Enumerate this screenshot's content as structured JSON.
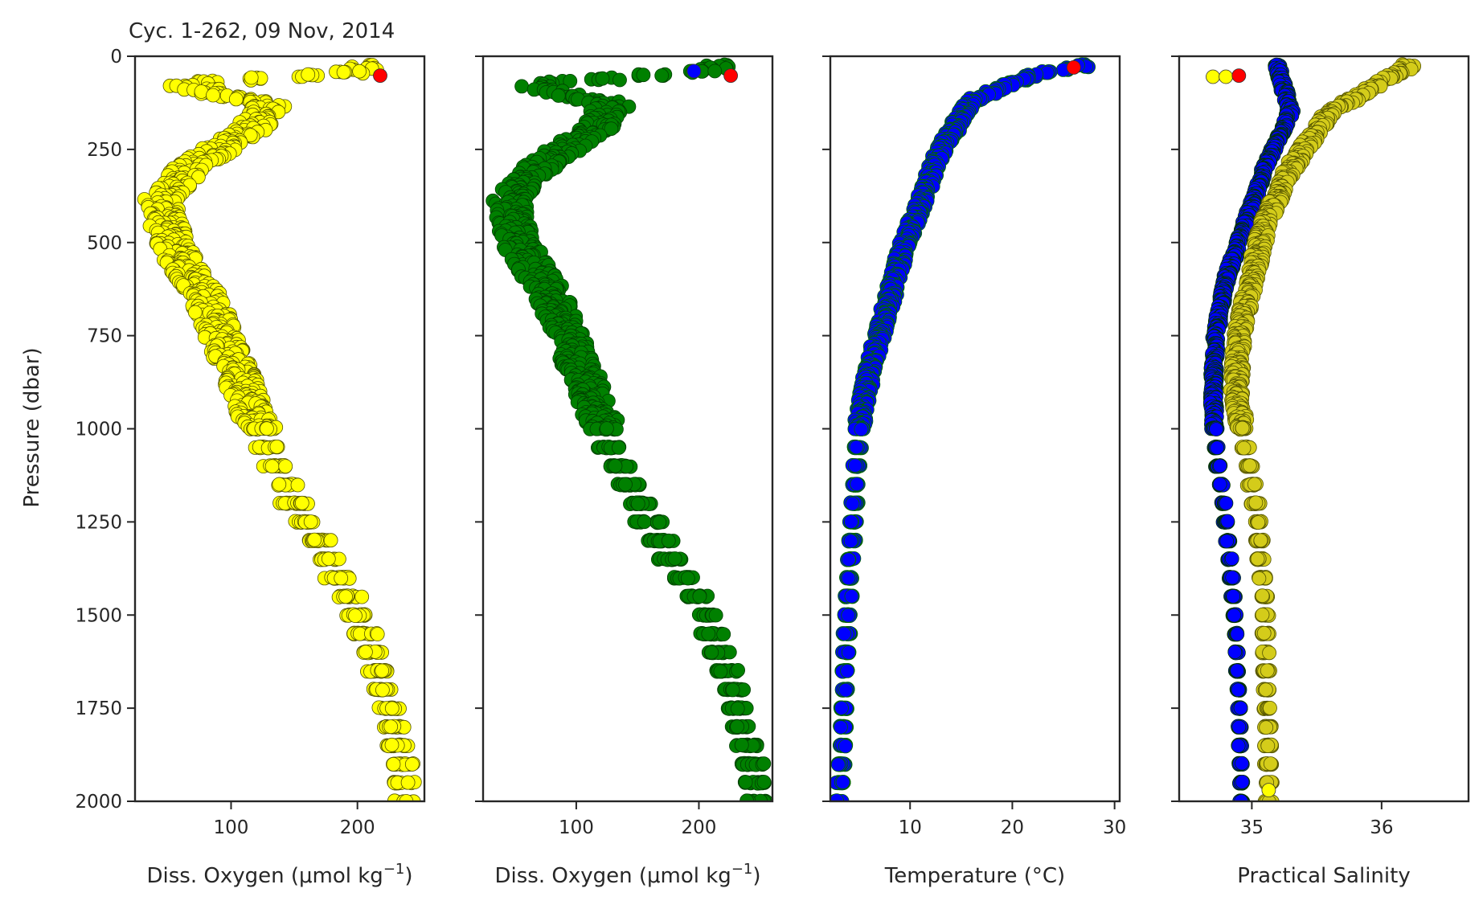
{
  "title": "Cyc. 1-262, 09 Nov, 2014",
  "y_axis": {
    "label": "Pressure (dbar)",
    "ticks": [
      0,
      250,
      500,
      750,
      1000,
      1250,
      1500,
      1750,
      2000
    ],
    "range": [
      2000,
      0
    ],
    "inverted": true
  },
  "chart_data": [
    {
      "type": "scatter",
      "xlabel": "Diss. Oxygen (μmol kg",
      "xlabel_sup": "−1",
      "xlabel_tail": ")",
      "xlim": [
        24,
        253
      ],
      "xticks": [
        100,
        200
      ],
      "ylim": [
        2000,
        0
      ],
      "grid": false,
      "series": [
        {
          "color": "#ffff00",
          "edge": "#555500",
          "profile_x": [
            205,
            60,
            130,
            115,
            75,
            45,
            52,
            80,
            105,
            128,
            150,
            178,
            200,
            222,
            236,
            238
          ],
          "profile_y": [
            40,
            75,
            130,
            200,
            280,
            380,
            500,
            650,
            850,
            1050,
            1200,
            1350,
            1500,
            1700,
            1900,
            2000
          ],
          "spread": 28
        }
      ],
      "highlights": [
        {
          "x": 218,
          "y": 52,
          "color": "#ff0000"
        }
      ]
    },
    {
      "type": "scatter",
      "xlabel": "Diss. Oxygen (μmol kg",
      "xlabel_sup": "−1",
      "xlabel_tail": ")",
      "xlim": [
        24,
        260
      ],
      "xticks": [
        100,
        200
      ],
      "ylim": [
        2000,
        0
      ],
      "grid": false,
      "series": [
        {
          "color": "#008000",
          "edge": "#004000",
          "profile_x": [
            215,
            60,
            130,
            115,
            75,
            45,
            52,
            80,
            105,
            128,
            150,
            178,
            205,
            228,
            244,
            247
          ],
          "profile_y": [
            40,
            75,
            130,
            200,
            280,
            380,
            500,
            650,
            850,
            1050,
            1200,
            1350,
            1500,
            1700,
            1900,
            2000
          ],
          "spread": 28
        }
      ],
      "highlights": [
        {
          "x": 196,
          "y": 40,
          "color": "#0000ff"
        },
        {
          "x": 226,
          "y": 52,
          "color": "#ff0000"
        }
      ]
    },
    {
      "type": "scatter",
      "xlabel": "Temperature (°C)",
      "xlabel_sup": "",
      "xlabel_tail": "",
      "xlim": [
        2.2,
        30.5
      ],
      "xticks": [
        10,
        20,
        30
      ],
      "ylim": [
        2000,
        0
      ],
      "grid": false,
      "series": [
        {
          "color": "#0000ff",
          "edge": "#006400",
          "profile_x": [
            28,
            22,
            16,
            13,
            11,
            9.5,
            8,
            6,
            5,
            4.4,
            3.9,
            3.5,
            3.3,
            3.0
          ],
          "profile_y": [
            20,
            50,
            120,
            250,
            400,
            500,
            650,
            850,
            1000,
            1250,
            1500,
            1750,
            1900,
            2000
          ],
          "spread": 1.2
        }
      ],
      "highlights": [
        {
          "x": 26,
          "y": 30,
          "color": "#ff0000"
        }
      ]
    },
    {
      "type": "scatter",
      "xlabel": "Practical Salinity",
      "xlabel_sup": "",
      "xlabel_tail": "",
      "xlim": [
        34.44,
        36.67
      ],
      "xticks": [
        35,
        36
      ],
      "ylim": [
        2000,
        0
      ],
      "grid": false,
      "series": [
        {
          "color": "#0000ff",
          "edge": "#003300",
          "profile_x": [
            35.2,
            35.3,
            35.1,
            34.95,
            34.8,
            34.72,
            34.7,
            34.72,
            34.8,
            34.87,
            34.9,
            34.92
          ],
          "profile_y": [
            30,
            150,
            300,
            450,
            600,
            750,
            900,
            1050,
            1250,
            1500,
            1750,
            1980
          ],
          "spread": 0.05
        },
        {
          "color": "#d4cc1a",
          "edge": "#555500",
          "profile_x": [
            36.2,
            35.6,
            35.3,
            35.1,
            35.0,
            34.9,
            34.88,
            34.95,
            35.05,
            35.1,
            35.12,
            35.13
          ],
          "profile_y": [
            30,
            150,
            300,
            450,
            600,
            750,
            900,
            1050,
            1250,
            1500,
            1750,
            1980
          ],
          "spread": 0.1
        }
      ],
      "highlights": [
        {
          "x": 34.7,
          "y": 55,
          "color": "#ffff00"
        },
        {
          "x": 34.8,
          "y": 55,
          "color": "#ffff00"
        },
        {
          "x": 34.9,
          "y": 52,
          "color": "#ff0000"
        },
        {
          "x": 35.13,
          "y": 1970,
          "color": "#ffff00"
        }
      ]
    }
  ]
}
